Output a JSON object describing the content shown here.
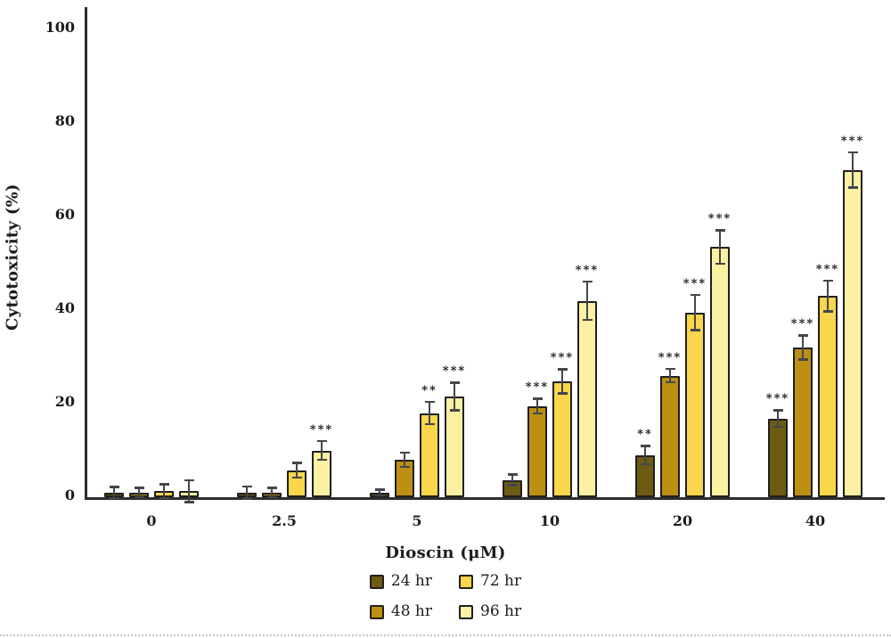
{
  "chart_data": {
    "type": "bar",
    "title": "",
    "xlabel": "Dioscin (μM)",
    "ylabel": "Cytotoxicity (%)",
    "ylim": [
      0,
      100
    ],
    "yticks": [
      0,
      20,
      40,
      60,
      80,
      100
    ],
    "categories": [
      "0",
      "2.5",
      "5",
      "10",
      "20",
      "40"
    ],
    "grid": false,
    "legend_position": "bottom-center",
    "error_bars": true,
    "series": [
      {
        "name": "24 hr",
        "color": "#6d5a13",
        "values": [
          1,
          1,
          1,
          3.7,
          9,
          16.8
        ],
        "errors": [
          1.4,
          1.5,
          0.9,
          1.4,
          2.2,
          2.0
        ],
        "significance": [
          "",
          "",
          "",
          "",
          "**",
          "***"
        ]
      },
      {
        "name": "48 hr",
        "color": "#bd8f12",
        "values": [
          1,
          1,
          8,
          19.5,
          26,
          32
        ],
        "errors": [
          1.2,
          1.2,
          1.8,
          1.8,
          1.7,
          2.8
        ],
        "significance": [
          "",
          "",
          "",
          "***",
          "***",
          "***"
        ]
      },
      {
        "name": "72 hr",
        "color": "#f9d64b",
        "values": [
          1.3,
          5.8,
          18,
          24.8,
          39.5,
          43
        ],
        "errors": [
          1.7,
          1.8,
          2.6,
          2.8,
          4.0,
          3.5
        ],
        "significance": [
          "",
          "",
          "**",
          "***",
          "***",
          "***"
        ]
      },
      {
        "name": "96 hr",
        "color": "#fcf0a2",
        "values": [
          1.3,
          10,
          21.5,
          42,
          53.5,
          70
        ],
        "errors": [
          2.6,
          2.2,
          3.2,
          4.3,
          3.8,
          4.0
        ],
        "significance": [
          "",
          "***",
          "***",
          "***",
          "***",
          "***"
        ]
      }
    ]
  },
  "colors": {
    "bar_outline": "#1f1f1f",
    "axis": "#2e2e2e",
    "error_bar": "#44464e",
    "text": "#1c1c1c",
    "dotted_line": "#c6c6c6",
    "background": "#ffffff"
  }
}
